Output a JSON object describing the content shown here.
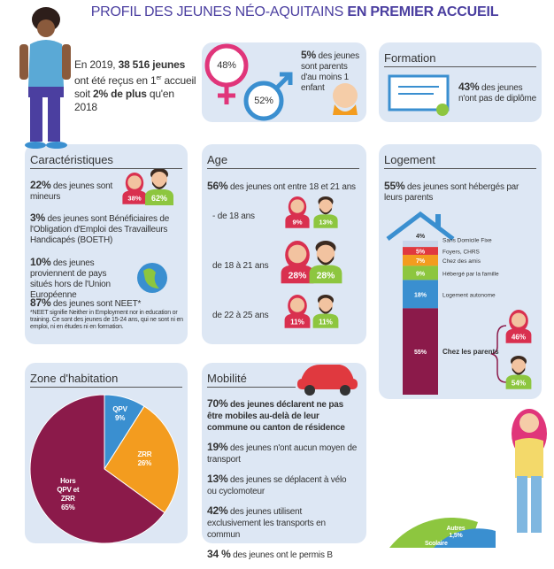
{
  "header": {
    "title": "PROFIL DES JEUNES NÉO-AQUITAINS",
    "title_emphasis": "EN PREMIER ACCUEIL"
  },
  "intro": {
    "lead": "En 2019,",
    "count": "38 516 jeunes",
    "line2": "ont été reçus en 1",
    "sup": "er",
    "line2_end": "accueil",
    "line3": "soit",
    "increase": "2% de plus",
    "line3_end": "qu'en 2018"
  },
  "gender": {
    "female": "48%",
    "male": "52%",
    "parents_pct": "5%",
    "parents_text": "des jeunes sont parents d'au moins 1 enfant"
  },
  "formation": {
    "title": "Formation",
    "pct": "43%",
    "text": "des jeunes n'ont pas de diplôme"
  },
  "caracteristiques": {
    "title": "Caractéristiques",
    "items": [
      {
        "pct": "22%",
        "text": "des jeunes sont mineurs"
      },
      {
        "pct": "3%",
        "text": "des jeunes sont Bénéficiaires de l'Obligation d'Emploi des Travailleurs Handicapés (BOETH)"
      },
      {
        "pct": "10%",
        "text": "des jeunes proviennent de pays situés hors de l'Union Européenne"
      },
      {
        "pct": "87%",
        "text": "des jeunes sont NEET*"
      }
    ],
    "female": "38%",
    "male": "62%",
    "note": "*NEET signifie Neither in Employment nor in education or training. Ce sont des jeunes de 15-24 ans, qui ne sont ni en emploi, ni en études ni en formation."
  },
  "age": {
    "title": "Age",
    "pct": "56%",
    "text": "des jeunes ont entre 18 et 21 ans",
    "groups": [
      {
        "label": "- de 18 ans",
        "female": "9%",
        "male": "13%"
      },
      {
        "label": "de 18 à 21 ans",
        "female": "28%",
        "male": "28%"
      },
      {
        "label": "de 22 à 25 ans",
        "female": "11%",
        "male": "11%"
      }
    ]
  },
  "logement": {
    "title": "Logement",
    "pct": "55%",
    "text": "des jeunes sont hébergés par leurs parents",
    "parents_female": "46%",
    "parents_male": "54%"
  },
  "mobilite": {
    "title": "Mobilité",
    "items": [
      {
        "pct": "70%",
        "text": "des jeunes déclarent ne pas être mobiles au-delà de leur commune ou canton de résidence",
        "emphasis": true
      },
      {
        "pct": "19%",
        "text": "des jeunes n'ont aucun moyen de transport",
        "emphasis": false
      },
      {
        "pct": "13%",
        "text": "des jeunes se déplacent à vélo ou cyclomoteur",
        "emphasis": false
      },
      {
        "pct": "42%",
        "text": "des jeunes utilisent exclusivement les transports en commun",
        "emphasis": false
      },
      {
        "pct": "34 %",
        "text": "des jeunes ont le permis B",
        "emphasis": false
      }
    ]
  },
  "scolarite": {
    "other_label": "Autres",
    "other_value": "1,5%",
    "school_label": "Scolaire"
  },
  "chart_data": [
    {
      "type": "pie",
      "title": "Zone d'habitation",
      "categories": [
        "QPV",
        "ZRR",
        "Hors QPV et ZRR"
      ],
      "values": [
        9,
        26,
        65
      ],
      "value_labels": [
        "9%",
        "26%",
        "65%"
      ],
      "colors": [
        "#3a8fd0",
        "#f39c1f",
        "#8b1a4a"
      ]
    },
    {
      "type": "stacked-bar",
      "categories": [
        "Sans Domicile Fixe",
        "Foyers, CHRS",
        "Chez des amis",
        "Hébergé par la famille",
        "Logement autonome",
        "Chez les parents"
      ],
      "values": [
        4,
        5,
        7,
        9,
        18,
        55
      ],
      "value_labels": [
        "4%",
        "5%",
        "7%",
        "9%",
        "18%",
        "55%"
      ],
      "colors": [
        "#c9d6ea",
        "#e0393f",
        "#f39c1f",
        "#8dc63f",
        "#3a8fd0",
        "#8b1a4a"
      ]
    }
  ]
}
